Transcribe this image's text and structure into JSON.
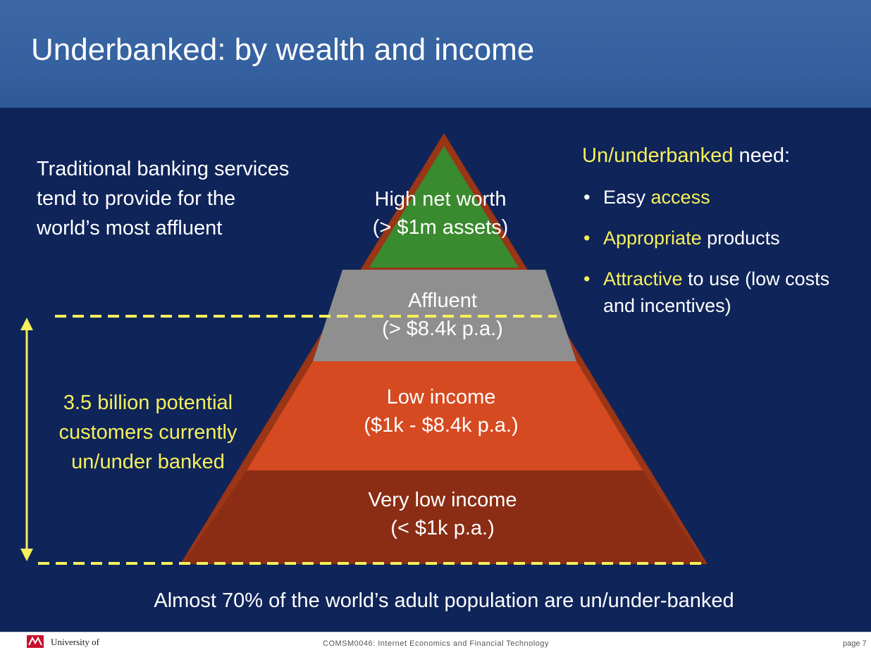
{
  "slide": {
    "title": "Underbanked: by wealth and income",
    "intro_lines": [
      "Traditional banking services",
      "tend to provide for the",
      "world’s most affluent"
    ],
    "needs": {
      "heading_highlight": "Un/underbanked",
      "heading_rest": " need:",
      "items": [
        {
          "bullet_color": "white",
          "parts": [
            {
              "text": "Easy ",
              "hl": false
            },
            {
              "text": "access",
              "hl": true
            }
          ],
          "second_line": ""
        },
        {
          "bullet_color": "yellow",
          "parts": [
            {
              "text": "Appropriate",
              "hl": true
            },
            {
              "text": " products",
              "hl": false
            }
          ],
          "second_line": ""
        },
        {
          "bullet_color": "yellow",
          "parts": [
            {
              "text": "Attractive",
              "hl": true
            },
            {
              "text": " to use (low costs",
              "hl": false
            }
          ],
          "second_line": "and incentives)"
        }
      ]
    },
    "pyramid": {
      "tiers": [
        {
          "name": "High net worth",
          "detail": "(> $1m assets)",
          "color": "#3a8a2f"
        },
        {
          "name": "Affluent",
          "detail": "(> $8.4k p.a.)",
          "color": "#8f8f8f"
        },
        {
          "name": "Low income",
          "detail": "($1k - $8.4k p.a.)",
          "color": "#d64a21"
        },
        {
          "name": "Very low income",
          "detail": "(< $1k p.a.)",
          "color": "#8a2d14"
        }
      ],
      "outline_color": "#9a3516"
    },
    "potential_lines": [
      "3.5 billion potential",
      "customers currently",
      "un/under banked"
    ],
    "bottom_line": "Almost 70% of the world’s adult population are un/under-banked",
    "accent_color": "#f6f05c",
    "background_color": "#0f2459",
    "header_color": "#3561a0"
  },
  "footer": {
    "university": "University of",
    "course": "COMSM0046: Internet Economics and Financial Technology",
    "page": "page 7"
  }
}
